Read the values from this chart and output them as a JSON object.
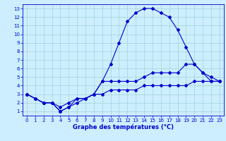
{
  "xlabel": "Graphe des températures (°C)",
  "xlim": [
    -0.5,
    23.5
  ],
  "ylim": [
    0.5,
    13.5
  ],
  "xticks": [
    0,
    1,
    2,
    3,
    4,
    5,
    6,
    7,
    8,
    9,
    10,
    11,
    12,
    13,
    14,
    15,
    16,
    17,
    18,
    19,
    20,
    21,
    22,
    23
  ],
  "yticks": [
    1,
    2,
    3,
    4,
    5,
    6,
    7,
    8,
    9,
    10,
    11,
    12,
    13
  ],
  "bg_color": "#cceeff",
  "line_color": "#0000cc",
  "grid_color": "#99cccc",
  "line1_x": [
    0,
    1,
    2,
    3,
    4,
    5,
    6,
    7,
    8,
    9,
    10,
    11,
    12,
    13,
    14,
    15,
    16,
    17,
    18,
    19,
    20,
    21,
    22,
    23
  ],
  "line1_y": [
    3.0,
    2.5,
    2.0,
    2.0,
    1.5,
    2.0,
    2.5,
    2.5,
    3.0,
    4.5,
    6.5,
    9.0,
    11.5,
    12.5,
    13.0,
    13.0,
    12.5,
    12.0,
    10.5,
    8.5,
    6.5,
    5.5,
    4.5,
    4.5
  ],
  "line2_x": [
    0,
    1,
    2,
    3,
    4,
    5,
    6,
    7,
    8,
    9,
    10,
    11,
    12,
    13,
    14,
    15,
    16,
    17,
    18,
    19,
    20,
    21,
    22,
    23
  ],
  "line2_y": [
    3.0,
    2.5,
    2.0,
    2.0,
    1.0,
    1.5,
    2.0,
    2.5,
    3.0,
    4.5,
    4.5,
    4.5,
    4.5,
    4.5,
    5.0,
    5.5,
    5.5,
    5.5,
    5.5,
    6.5,
    6.5,
    5.5,
    5.0,
    4.5
  ],
  "line3_x": [
    0,
    1,
    2,
    3,
    4,
    5,
    6,
    7,
    8,
    9,
    10,
    11,
    12,
    13,
    14,
    15,
    16,
    17,
    18,
    19,
    20,
    21,
    22,
    23
  ],
  "line3_y": [
    3.0,
    2.5,
    2.0,
    2.0,
    1.0,
    1.5,
    2.5,
    2.5,
    3.0,
    3.0,
    3.5,
    3.5,
    3.5,
    3.5,
    4.0,
    4.0,
    4.0,
    4.0,
    4.0,
    4.0,
    4.5,
    4.5,
    4.5,
    4.5
  ],
  "tick_fontsize": 5,
  "xlabel_fontsize": 6,
  "marker_size": 2.0,
  "line_width": 0.8
}
